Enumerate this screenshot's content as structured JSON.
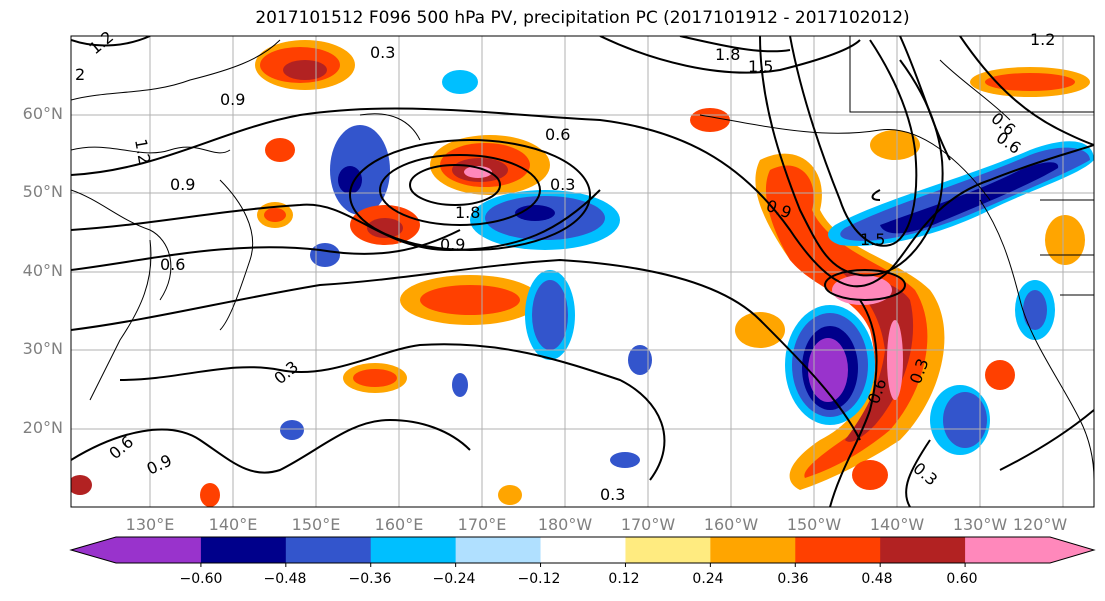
{
  "title": "2017101512 F096 500 hPa PV, precipitation PC (2017101912 - 2017102012)",
  "lat_labels": [
    "60°N",
    "50°N",
    "40°N",
    "30°N",
    "20°N"
  ],
  "lon_labels": [
    "130°E",
    "140°E",
    "150°E",
    "160°E",
    "170°E",
    "180°W",
    "170°W",
    "160°W",
    "150°W",
    "140°W",
    "130°W",
    "120°W"
  ],
  "colorbar": {
    "colors": [
      "#9933cc",
      "#00008b",
      "#3355cc",
      "#00bfff",
      "#b0e0ff",
      "#ffffff",
      "#ffeb80",
      "#ffa500",
      "#ff4000",
      "#b22222",
      "#ff88bb"
    ],
    "tick_labels": [
      "−0.60",
      "−0.48",
      "−0.36",
      "−0.24",
      "−0.12",
      "0.12",
      "0.24",
      "0.36",
      "0.48",
      "0.60"
    ]
  },
  "contour_labels": [
    "1.2",
    "0.3",
    "1.8",
    "1.5",
    "2",
    "0.9",
    "0.6",
    "1.2",
    "1.5",
    "1.8",
    "0.9",
    "0.6",
    "0.9",
    "0.6",
    "0.3",
    "0.6",
    "0.9",
    "1.2",
    "0.3",
    "0.3",
    "0.6",
    "0.9",
    "0.3",
    "0.6",
    "0.3"
  ]
}
